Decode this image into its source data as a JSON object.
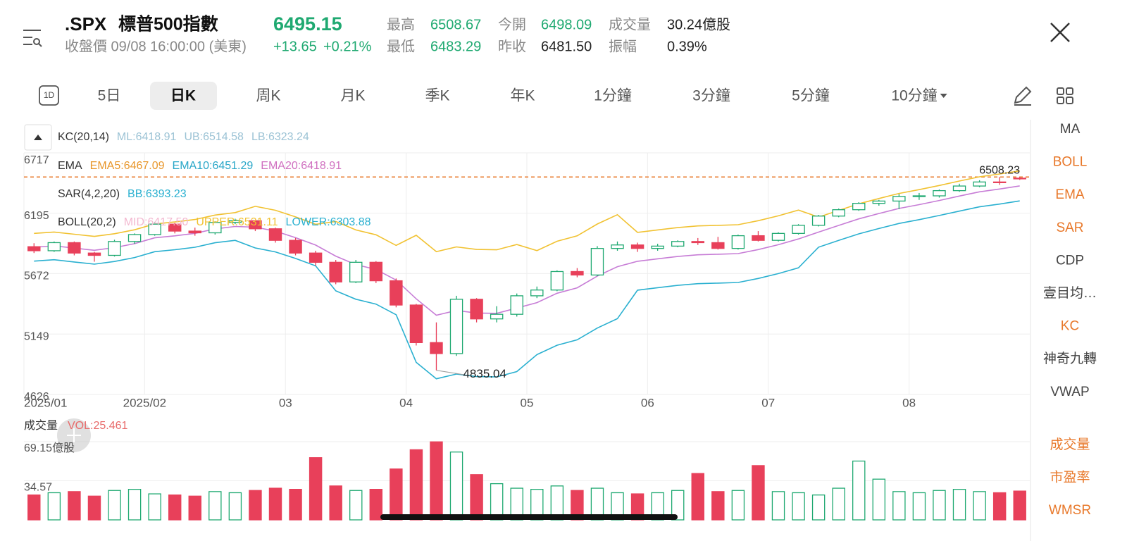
{
  "header": {
    "symbol": ".SPX",
    "name": "標普500指數",
    "price": "6495.15",
    "status": "收盤價 09/08 16:00:00 (美東)",
    "change": "+13.65",
    "change_pct": "+0.21%",
    "stats": [
      {
        "label": "最高",
        "value": "6508.67",
        "color": "#1fa971"
      },
      {
        "label": "最低",
        "value": "6483.29",
        "color": "#1fa971"
      },
      {
        "label": "今開",
        "value": "6498.09",
        "color": "#1fa971"
      },
      {
        "label": "昨收",
        "value": "6481.50",
        "color": "#222222"
      },
      {
        "label": "成交量",
        "value": "30.24億股",
        "color": "#222222"
      },
      {
        "label": "振幅",
        "value": "0.39%",
        "color": "#222222"
      }
    ]
  },
  "toolbar": {
    "icon": "1D",
    "tabs": [
      "5日",
      "日K",
      "周K",
      "月K",
      "季K",
      "年K",
      "1分鐘",
      "3分鐘",
      "5分鐘",
      "10分鐘"
    ],
    "active_tab": 1
  },
  "sidebar": {
    "top": [
      {
        "label": "MA",
        "highlight": false
      },
      {
        "label": "BOLL",
        "highlight": true
      },
      {
        "label": "EMA",
        "highlight": true
      },
      {
        "label": "SAR",
        "highlight": true
      },
      {
        "label": "CDP",
        "highlight": false
      },
      {
        "label": "壹目均…",
        "highlight": false
      },
      {
        "label": "KC",
        "highlight": true
      },
      {
        "label": "神奇九轉",
        "highlight": false
      },
      {
        "label": "VWAP",
        "highlight": false
      }
    ],
    "bottom": [
      {
        "label": "成交量",
        "highlight": true
      },
      {
        "label": "市盈率",
        "highlight": true
      },
      {
        "label": "WMSR",
        "highlight": true
      }
    ]
  },
  "legends": [
    {
      "items": [
        "KC(20,14)",
        "ML:6418.91",
        "UB:6514.58",
        "LB:6323.24"
      ],
      "colors": [
        "#333333",
        "#9cc3d5",
        "#9cc3d5",
        "#9cc3d5"
      ]
    },
    {
      "items": [
        "EMA",
        "EMA5:6467.09",
        "EMA10:6451.29",
        "EMA20:6418.91"
      ],
      "colors": [
        "#333333",
        "#e8962a",
        "#2aa7c8",
        "#d070c0"
      ]
    },
    {
      "items": [
        "SAR(4,2,20)",
        "BB:6393.23"
      ],
      "colors": [
        "#333333",
        "#2ab0d0"
      ]
    },
    {
      "items": [
        "BOLL(20,2)",
        "MID:6417.50",
        "UPPER:6531.11",
        "LOWER:6303.88"
      ],
      "colors": [
        "#333333",
        "#f3b8d0",
        "#f1c232",
        "#2ab0d0"
      ]
    }
  ],
  "chart_data": [
    {
      "type": "candlestick",
      "up_color": "#1fa971",
      "down_color": "#e8405a",
      "grid": true,
      "ylim": [
        4626,
        6717
      ],
      "yticks": [
        6717,
        6195,
        5672,
        5149,
        4626
      ],
      "xticks": [
        {
          "value": 0,
          "label": "2025/01"
        },
        {
          "value": 6,
          "label": "2025/02"
        },
        {
          "value": 13,
          "label": "03"
        },
        {
          "value": 19,
          "label": "04"
        },
        {
          "value": 25,
          "label": "05"
        },
        {
          "value": 31,
          "label": "06"
        },
        {
          "value": 37,
          "label": "07"
        },
        {
          "value": 44,
          "label": "08"
        }
      ],
      "open": [
        5905,
        5870,
        5940,
        5850,
        5830,
        5950,
        6010,
        6100,
        6040,
        6025,
        6115,
        6130,
        6060,
        5960,
        5850,
        5770,
        5600,
        5770,
        5610,
        5400,
        5075,
        4980,
        5450,
        5280,
        5320,
        5480,
        5530,
        5690,
        5660,
        5890,
        5920,
        5890,
        5910,
        5950,
        5940,
        5890,
        6000,
        5960,
        6020,
        6090,
        6170,
        6225,
        6280,
        6300,
        6340,
        6345,
        6390,
        6430,
        6465,
        6498
      ],
      "high": [
        5935,
        5950,
        5950,
        5860,
        5965,
        6020,
        6120,
        6110,
        6070,
        6125,
        6147,
        6135,
        6070,
        5980,
        5870,
        5790,
        5790,
        5780,
        5630,
        5410,
        5250,
        5480,
        5460,
        5390,
        5500,
        5560,
        5700,
        5720,
        5910,
        5950,
        5940,
        5930,
        5960,
        5980,
        5990,
        6010,
        6040,
        6030,
        6100,
        6180,
        6235,
        6290,
        6310,
        6360,
        6370,
        6400,
        6450,
        6480,
        6508.23,
        6508
      ],
      "low": [
        5850,
        5860,
        5830,
        5775,
        5820,
        5930,
        6000,
        6020,
        6000,
        6010,
        6100,
        6040,
        5940,
        5830,
        5740,
        5580,
        5590,
        5590,
        5380,
        5050,
        4835.04,
        4960,
        5250,
        5250,
        5300,
        5460,
        5520,
        5640,
        5650,
        5870,
        5860,
        5870,
        5900,
        5920,
        5880,
        5880,
        5950,
        5950,
        6010,
        6080,
        6160,
        6215,
        6260,
        6230,
        6310,
        6330,
        6380,
        6420,
        6440,
        6483
      ],
      "close": [
        5870,
        5940,
        5850,
        5830,
        5950,
        6010,
        6100,
        6040,
        6025,
        6115,
        6130,
        6060,
        5960,
        5850,
        5770,
        5600,
        5770,
        5610,
        5400,
        5075,
        4980,
        5450,
        5280,
        5320,
        5480,
        5530,
        5690,
        5660,
        5890,
        5920,
        5890,
        5910,
        5950,
        5940,
        5890,
        6000,
        5960,
        6020,
        6090,
        6170,
        6225,
        6280,
        6300,
        6340,
        6345,
        6390,
        6430,
        6465,
        6460,
        6495
      ],
      "lines": [
        {
          "color": "#f1c232",
          "values": [
            6020,
            6032,
            6013,
            5994,
            6017,
            6051,
            6102,
            6119,
            6140,
            6179,
            6200,
            6254,
            6220,
            6163,
            6099,
            6123,
            6050,
            6008,
            5916,
            6004,
            5862,
            5903,
            5881,
            5878,
            5924,
            5871,
            5952,
            5999,
            6101,
            6182,
            6029,
            6050,
            6070,
            6085,
            6090,
            6095,
            6130,
            6172,
            6222,
            6161,
            6219,
            6276,
            6322,
            6366,
            6399,
            6435,
            6473,
            6510,
            6534,
            6561
          ]
        },
        {
          "color": "#2ab0d0",
          "values": [
            5780,
            5792,
            5773,
            5754,
            5777,
            5811,
            5862,
            5879,
            5900,
            5939,
            5960,
            5894,
            5860,
            5803,
            5739,
            5523,
            5450,
            5408,
            5316,
            4904,
            4762,
            4803,
            4781,
            4778,
            4824,
            4971,
            5052,
            5099,
            5201,
            5282,
            5529,
            5550,
            5570,
            5585,
            5590,
            5595,
            5630,
            5672,
            5722,
            5901,
            5959,
            6016,
            6062,
            6106,
            6139,
            6175,
            6213,
            6250,
            6274,
            6301
          ]
        },
        {
          "color": "#c77dd6",
          "values": [
            5900,
            5912,
            5893,
            5874,
            5897,
            5931,
            5982,
            5999,
            6020,
            6059,
            6080,
            6074,
            6040,
            5983,
            5919,
            5823,
            5750,
            5708,
            5616,
            5454,
            5312,
            5353,
            5331,
            5328,
            5374,
            5421,
            5502,
            5549,
            5651,
            5732,
            5779,
            5800,
            5820,
            5835,
            5840,
            5845,
            5880,
            5922,
            5972,
            6031,
            6089,
            6146,
            6192,
            6236,
            6269,
            6305,
            6343,
            6380,
            6404,
            6431
          ]
        }
      ],
      "max_label": 6508.23,
      "min_label": 4835.04,
      "max_line_color": "#e8782a"
    },
    {
      "type": "bar",
      "title": "成交量",
      "legend": "VOL:25.461",
      "legend_color": "#e86a6a",
      "ylim": [
        0,
        73.5
      ],
      "yticks": [
        {
          "value": 69.15,
          "label": "69.15億股"
        },
        34.57
      ],
      "values": [
        22,
        24,
        25,
        21,
        26,
        27,
        23,
        22,
        21,
        25,
        24,
        26,
        28,
        27,
        55,
        30,
        26,
        27,
        45,
        62,
        69,
        60,
        40,
        32,
        28,
        27,
        30,
        26,
        28,
        24,
        23,
        24,
        26,
        41,
        25,
        26,
        48,
        25,
        24,
        22,
        28,
        52,
        36,
        25,
        24,
        26,
        27,
        25,
        24,
        25.461
      ]
    }
  ]
}
